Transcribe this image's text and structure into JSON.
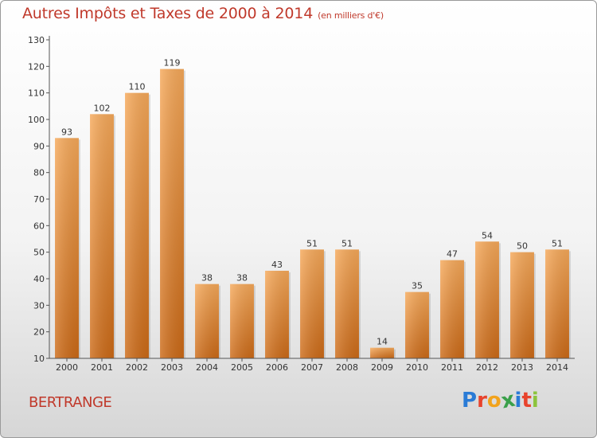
{
  "header": {
    "title": "Autres Impôts et Taxes de 2000 à 2014",
    "subtitle": "(en milliers d'€)"
  },
  "footer": {
    "place": "BERTRANGE",
    "logo_letters": [
      "P",
      "r",
      "o",
      "x",
      "i",
      "t",
      "i"
    ],
    "logo_colors": [
      "#2a7bd6",
      "#e8432c",
      "#f2a31c",
      "#3aa04a",
      "#2a7bd6",
      "#e8432c",
      "#8cc43d"
    ]
  },
  "colors": {
    "bar_top": "#f6a95a",
    "bar_bottom": "#cc6a17",
    "axis": "#555555",
    "text": "#333333"
  },
  "chart_data": {
    "type": "bar",
    "title": "Autres Impôts et Taxes de 2000 à 2014",
    "subtitle": "(en milliers d'€)",
    "categories": [
      "2000",
      "2001",
      "2002",
      "2003",
      "2004",
      "2005",
      "2006",
      "2007",
      "2008",
      "2009",
      "2010",
      "2011",
      "2012",
      "2013",
      "2014"
    ],
    "values": [
      93,
      102,
      110,
      119,
      38,
      38,
      43,
      51,
      51,
      14,
      35,
      47,
      54,
      50,
      51
    ],
    "ylim": [
      10,
      130
    ],
    "yticks": [
      10,
      20,
      30,
      40,
      50,
      60,
      70,
      80,
      90,
      100,
      110,
      120,
      130
    ],
    "grid": false,
    "data_labels": true
  }
}
